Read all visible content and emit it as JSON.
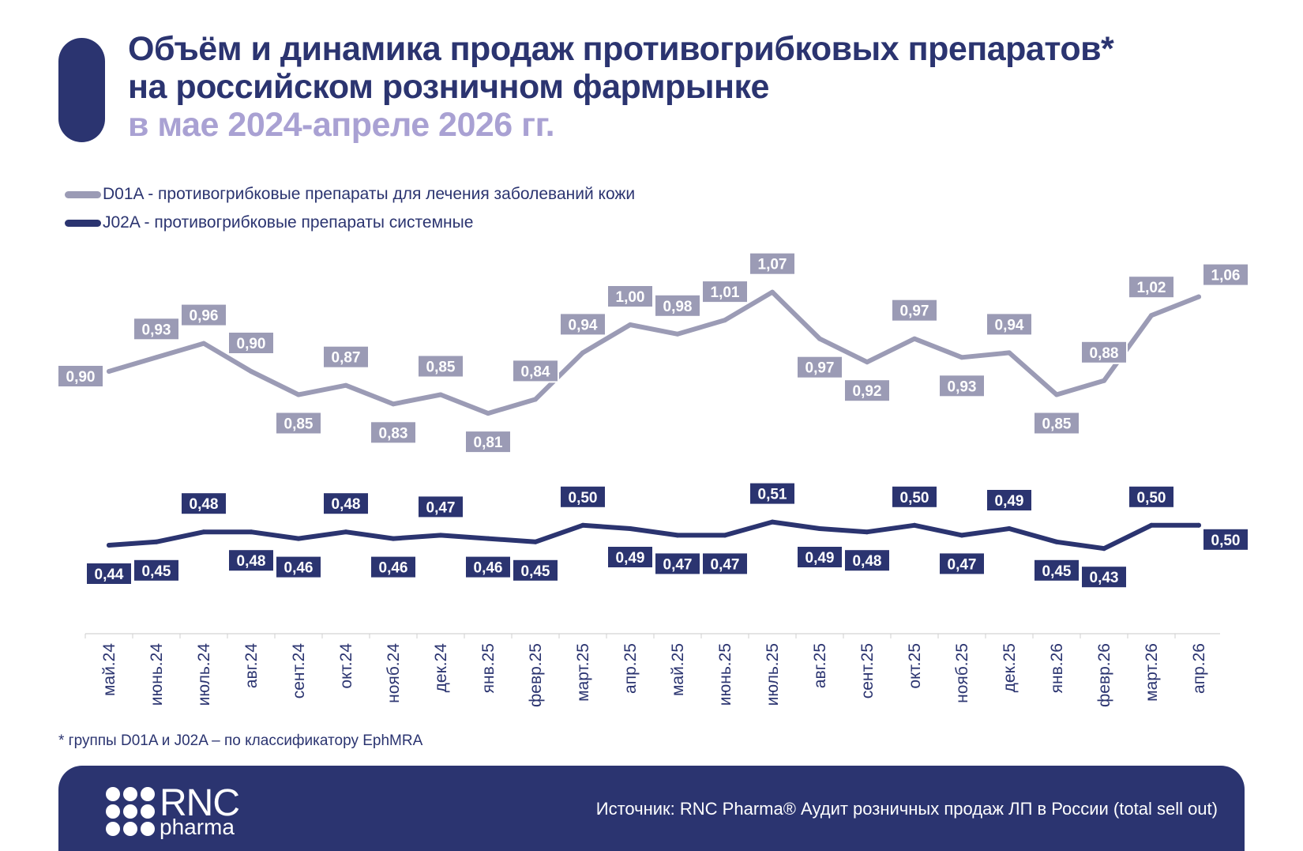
{
  "title": {
    "line1": "Объём и динамика продаж противогрибковых препаратов*",
    "line2": "на российском розничном фармрынке",
    "line3": "в мае 2024-апреле 2026 гг."
  },
  "colors": {
    "navy": "#2b3470",
    "gray_series": "#9b9bb5",
    "accent_lavender": "#a9a1d3"
  },
  "chart_data": {
    "type": "line",
    "categories": [
      "май.24",
      "июнь.24",
      "июль.24",
      "авг.24",
      "сент.24",
      "окт.24",
      "нояб.24",
      "дек.24",
      "янв.25",
      "февр.25",
      "март.25",
      "апр.25",
      "май.25",
      "июнь.25",
      "июль.25",
      "авг.25",
      "сент.25",
      "окт.25",
      "нояб.25",
      "дек.25",
      "янв.26",
      "февр.26",
      "март.26",
      "апр.26"
    ],
    "series": [
      {
        "name": "D01A - противогрибковые препараты для лечения заболеваний кожи",
        "values": [
          0.9,
          0.93,
          0.96,
          0.9,
          0.85,
          0.87,
          0.83,
          0.85,
          0.81,
          0.84,
          0.94,
          1.0,
          0.98,
          1.01,
          1.07,
          0.97,
          0.92,
          0.97,
          0.93,
          0.94,
          0.85,
          0.88,
          1.02,
          1.06
        ],
        "labels": [
          "0,90",
          "0,93",
          "0,96",
          "0,90",
          "0,85",
          "0,87",
          "0,83",
          "0,85",
          "0,81",
          "0,84",
          "0,94",
          "1,00",
          "0,98",
          "1,01",
          "1,07",
          "0,97",
          "0,92",
          "0,97",
          "0,93",
          "0,94",
          "0,85",
          "0,88",
          "1,02",
          "1,06"
        ],
        "label_side": [
          "left",
          "above",
          "above",
          "above",
          "below",
          "above",
          "below",
          "above",
          "below",
          "above",
          "above",
          "above",
          "above",
          "above",
          "above",
          "below",
          "below",
          "above",
          "below",
          "above",
          "below",
          "above",
          "above",
          "right"
        ],
        "color": "#9b9bb5"
      },
      {
        "name": "J02A - противогрибковые препараты системные",
        "values": [
          0.44,
          0.45,
          0.48,
          0.48,
          0.46,
          0.48,
          0.46,
          0.47,
          0.46,
          0.45,
          0.5,
          0.49,
          0.47,
          0.47,
          0.51,
          0.49,
          0.48,
          0.5,
          0.47,
          0.49,
          0.45,
          0.43,
          0.5,
          0.5
        ],
        "labels": [
          "0,44",
          "0,45",
          "0,48",
          "0,48",
          "0,46",
          "0,48",
          "0,46",
          "0,47",
          "0,46",
          "0,45",
          "0,50",
          "0,49",
          "0,47",
          "0,47",
          "0,51",
          "0,49",
          "0,48",
          "0,50",
          "0,47",
          "0,49",
          "0,45",
          "0,43",
          "0,50",
          "0,50"
        ],
        "label_side": [
          "below",
          "below",
          "above",
          "below",
          "below",
          "above",
          "below",
          "above",
          "below",
          "below",
          "above",
          "below",
          "below",
          "below",
          "above",
          "below",
          "below",
          "above",
          "below",
          "above",
          "below",
          "below",
          "above",
          "right"
        ],
        "color": "#2b3470"
      }
    ]
  },
  "footnote": "* группы D01A и J02A – по классификатору EphMRA",
  "footer": {
    "logo_text": "RNC",
    "logo_sub": "pharma",
    "source": "Источник: RNC Pharma® Аудит розничных продаж ЛП в России (total sell out)"
  }
}
